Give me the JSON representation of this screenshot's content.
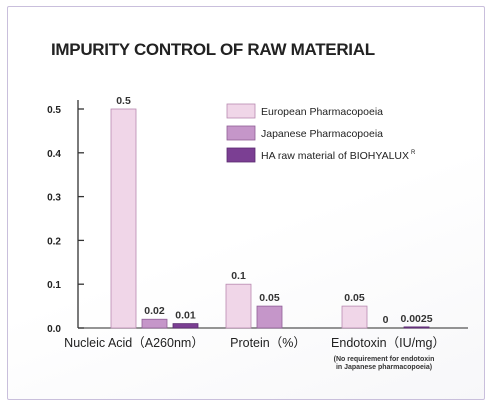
{
  "chart_data": {
    "type": "bar",
    "title": "IMPURITY CONTROL OF RAW MATERIAL",
    "categories": [
      "Nucleic Acid（A260nm）",
      "Protein（%）",
      "Endotoxin（IU/mg）"
    ],
    "series": [
      {
        "name": "European Pharmacopoeia",
        "color": "#f0d6e8",
        "stroke": "#b889b0",
        "values": [
          0.5,
          0.1,
          0.05
        ],
        "labels": [
          "0.5",
          "0.1",
          "0.05"
        ]
      },
      {
        "name": "Japanese Pharmacopoeia",
        "color": "#c596c9",
        "stroke": "#8f5e97",
        "values": [
          0.02,
          0.05,
          0
        ],
        "labels": [
          "0.02",
          "0.05",
          "0"
        ]
      },
      {
        "name": "HA raw material of BIOHYALUX",
        "name_sup": "R",
        "color": "#7b3f93",
        "stroke": "#5a2a70",
        "values": [
          0.01,
          0,
          0.0025
        ],
        "labels": [
          "0.01",
          "",
          "0.0025"
        ]
      }
    ],
    "ylim": [
      0,
      0.5
    ],
    "yticks": [
      "0.0",
      "0.1",
      "0.2",
      "0.3",
      "0.4",
      "0.5"
    ],
    "note": [
      "(No requirement for endotoxin",
      "in Japanese pharmacopoeia)"
    ],
    "legend_position": "top-right",
    "grid": false
  }
}
